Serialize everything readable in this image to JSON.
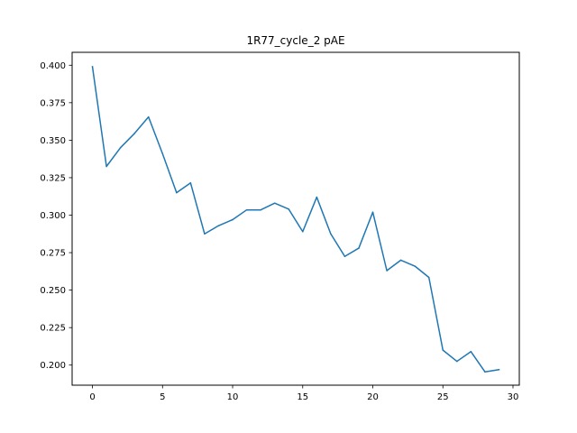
{
  "chart_data": {
    "type": "line",
    "title": "1R77_cycle_2 pAE",
    "xlabel": "",
    "ylabel": "",
    "xlim": [
      -1.45,
      30.45
    ],
    "ylim": [
      0.1866,
      0.4086
    ],
    "grid": false,
    "x_ticks": [
      0,
      5,
      10,
      15,
      20,
      25,
      30
    ],
    "x_tick_labels": [
      "0",
      "5",
      "10",
      "15",
      "20",
      "25",
      "30"
    ],
    "y_ticks": [
      0.2,
      0.225,
      0.25,
      0.275,
      0.3,
      0.325,
      0.35,
      0.375,
      0.4
    ],
    "y_tick_labels": [
      "0.200",
      "0.225",
      "0.250",
      "0.275",
      "0.300",
      "0.325",
      "0.350",
      "0.375",
      "0.400"
    ],
    "series": [
      {
        "color": "#1f77b4",
        "x": [
          0,
          1,
          2,
          3,
          4,
          5,
          6,
          7,
          8,
          9,
          10,
          11,
          12,
          13,
          14,
          15,
          16,
          17,
          18,
          19,
          20,
          21,
          22,
          23,
          24,
          25,
          26,
          27,
          28,
          29
        ],
        "values": [
          0.399,
          0.3325,
          0.345,
          0.3545,
          0.3655,
          0.341,
          0.315,
          0.3215,
          0.2875,
          0.293,
          0.297,
          0.3035,
          0.3035,
          0.308,
          0.304,
          0.289,
          0.312,
          0.2875,
          0.2725,
          0.278,
          0.302,
          0.263,
          0.27,
          0.266,
          0.2585,
          0.21,
          0.2025,
          0.209,
          0.1955,
          0.197
        ]
      }
    ]
  }
}
